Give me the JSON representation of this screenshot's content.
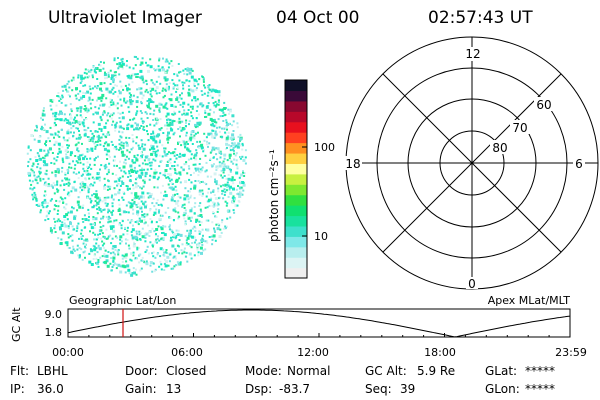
{
  "header": {
    "instrument": "Ultraviolet Imager",
    "date": "04 Oct 00",
    "time": "02:57:43 UT"
  },
  "image_panel": {
    "dot_colors": [
      "#19e7c4",
      "#23e89a",
      "#3de0cd",
      "#6fe0e0",
      "#a8ecec",
      "#d8f2f2"
    ]
  },
  "colorbar": {
    "unit_label": "photon cm⁻²s⁻¹",
    "tick_labels": [
      "100",
      "10"
    ],
    "colors": [
      "#efefef",
      "#dcf4f4",
      "#b8eeee",
      "#7fe8e8",
      "#3ee0cc",
      "#19e19e",
      "#10e070",
      "#30e040",
      "#7ee830",
      "#c8f040",
      "#ffffa0",
      "#ffd040",
      "#ff9020",
      "#ff4020",
      "#e8101e",
      "#b8082a",
      "#880830",
      "#3a0a38",
      "#101028"
    ]
  },
  "polar_plot": {
    "clock_labels": {
      "top": "12",
      "left": "18",
      "right": "6",
      "bottom": "0"
    },
    "lat_labels": [
      "60",
      "70",
      "80"
    ]
  },
  "altitude_plot": {
    "ylabel": "GC Alt",
    "y_ticks": [
      "9.0",
      "1.8"
    ],
    "left_header": "Geographic Lat/Lon",
    "right_header": "Apex MLat/MLT",
    "x_ticks": [
      "00:00",
      "06:00",
      "12:00",
      "18:00",
      "23:59"
    ],
    "marker_color": "#d01010"
  },
  "footer": {
    "row1": [
      {
        "label": "Flt:",
        "value": "LBHL"
      },
      {
        "label": "Door:",
        "value": "Closed"
      },
      {
        "label": "Mode:",
        "value": "Normal"
      },
      {
        "label": "GC Alt:",
        "value": "5.9 Re"
      },
      {
        "label": "GLat:",
        "value": "*****"
      }
    ],
    "row2": [
      {
        "label": "IP:",
        "value": "36.0"
      },
      {
        "label": "Gain:",
        "value": "13"
      },
      {
        "label": "Dsp:",
        "value": "-83.7"
      },
      {
        "label": "Seq:",
        "value": "39"
      },
      {
        "label": "GLon:",
        "value": "*****"
      }
    ]
  }
}
